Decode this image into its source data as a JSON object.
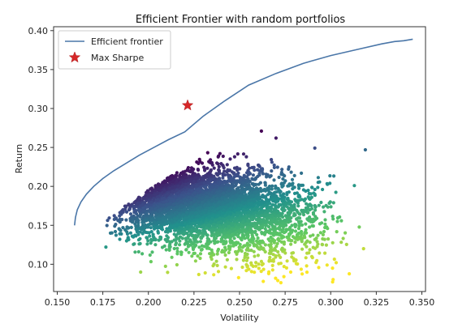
{
  "chart_data": {
    "type": "scatter",
    "title": "Efficient Frontier with random portfolios",
    "xlabel": "Volatility",
    "ylabel": "Return",
    "xlim": [
      0.148,
      0.352
    ],
    "ylim": [
      0.065,
      0.405
    ],
    "x_ticks": [
      "0.150",
      "0.175",
      "0.200",
      "0.225",
      "0.250",
      "0.275",
      "0.300",
      "0.325",
      "0.350"
    ],
    "y_ticks": [
      "0.10",
      "0.15",
      "0.20",
      "0.25",
      "0.30",
      "0.35",
      "0.40"
    ],
    "grid": false,
    "legend_position": "top-left",
    "series": [
      {
        "name": "Efficient frontier",
        "kind": "line",
        "color": "#4a76a8",
        "x": [
          0.1595,
          0.16,
          0.161,
          0.163,
          0.166,
          0.17,
          0.175,
          0.181,
          0.188,
          0.195,
          0.203,
          0.211,
          0.22,
          0.23,
          0.242,
          0.255,
          0.27,
          0.285,
          0.3,
          0.315,
          0.328,
          0.335,
          0.34,
          0.345
        ],
        "y": [
          0.15,
          0.16,
          0.17,
          0.18,
          0.19,
          0.2,
          0.21,
          0.22,
          0.23,
          0.24,
          0.25,
          0.26,
          0.27,
          0.29,
          0.31,
          0.33,
          0.345,
          0.358,
          0.368,
          0.376,
          0.383,
          0.386,
          0.387,
          0.389
        ]
      },
      {
        "name": "Max Sharpe",
        "kind": "marker",
        "marker": "star",
        "color": "#d62728",
        "x": [
          0.2215
        ],
        "y": [
          0.304
        ]
      },
      {
        "kind": "random-portfolios",
        "colormap": "viridis",
        "color_stops": [
          "#440154",
          "#3b528b",
          "#21918c",
          "#5ec962",
          "#fde725"
        ],
        "description_points": "cloud of random portfolios roughly spanning volatility 0.174-0.320, return 0.077-0.270",
        "cluster_centers": [
          {
            "x": 0.222,
            "y": 0.178,
            "sx": 0.02,
            "sy": 0.022,
            "n": 3200
          },
          {
            "x": 0.245,
            "y": 0.165,
            "sx": 0.022,
            "sy": 0.028,
            "n": 1400
          },
          {
            "x": 0.272,
            "y": 0.15,
            "sx": 0.016,
            "sy": 0.03,
            "n": 450
          }
        ],
        "outliers": [
          {
            "x": 0.319,
            "y": 0.247
          },
          {
            "x": 0.313,
            "y": 0.201
          },
          {
            "x": 0.318,
            "y": 0.12
          },
          {
            "x": 0.301,
            "y": 0.095
          },
          {
            "x": 0.298,
            "y": 0.099
          },
          {
            "x": 0.303,
            "y": 0.102
          },
          {
            "x": 0.263,
            "y": 0.078
          },
          {
            "x": 0.266,
            "y": 0.088
          },
          {
            "x": 0.271,
            "y": 0.079
          },
          {
            "x": 0.27,
            "y": 0.262
          },
          {
            "x": 0.262,
            "y": 0.271
          },
          {
            "x": 0.289,
            "y": 0.185
          }
        ]
      }
    ]
  }
}
